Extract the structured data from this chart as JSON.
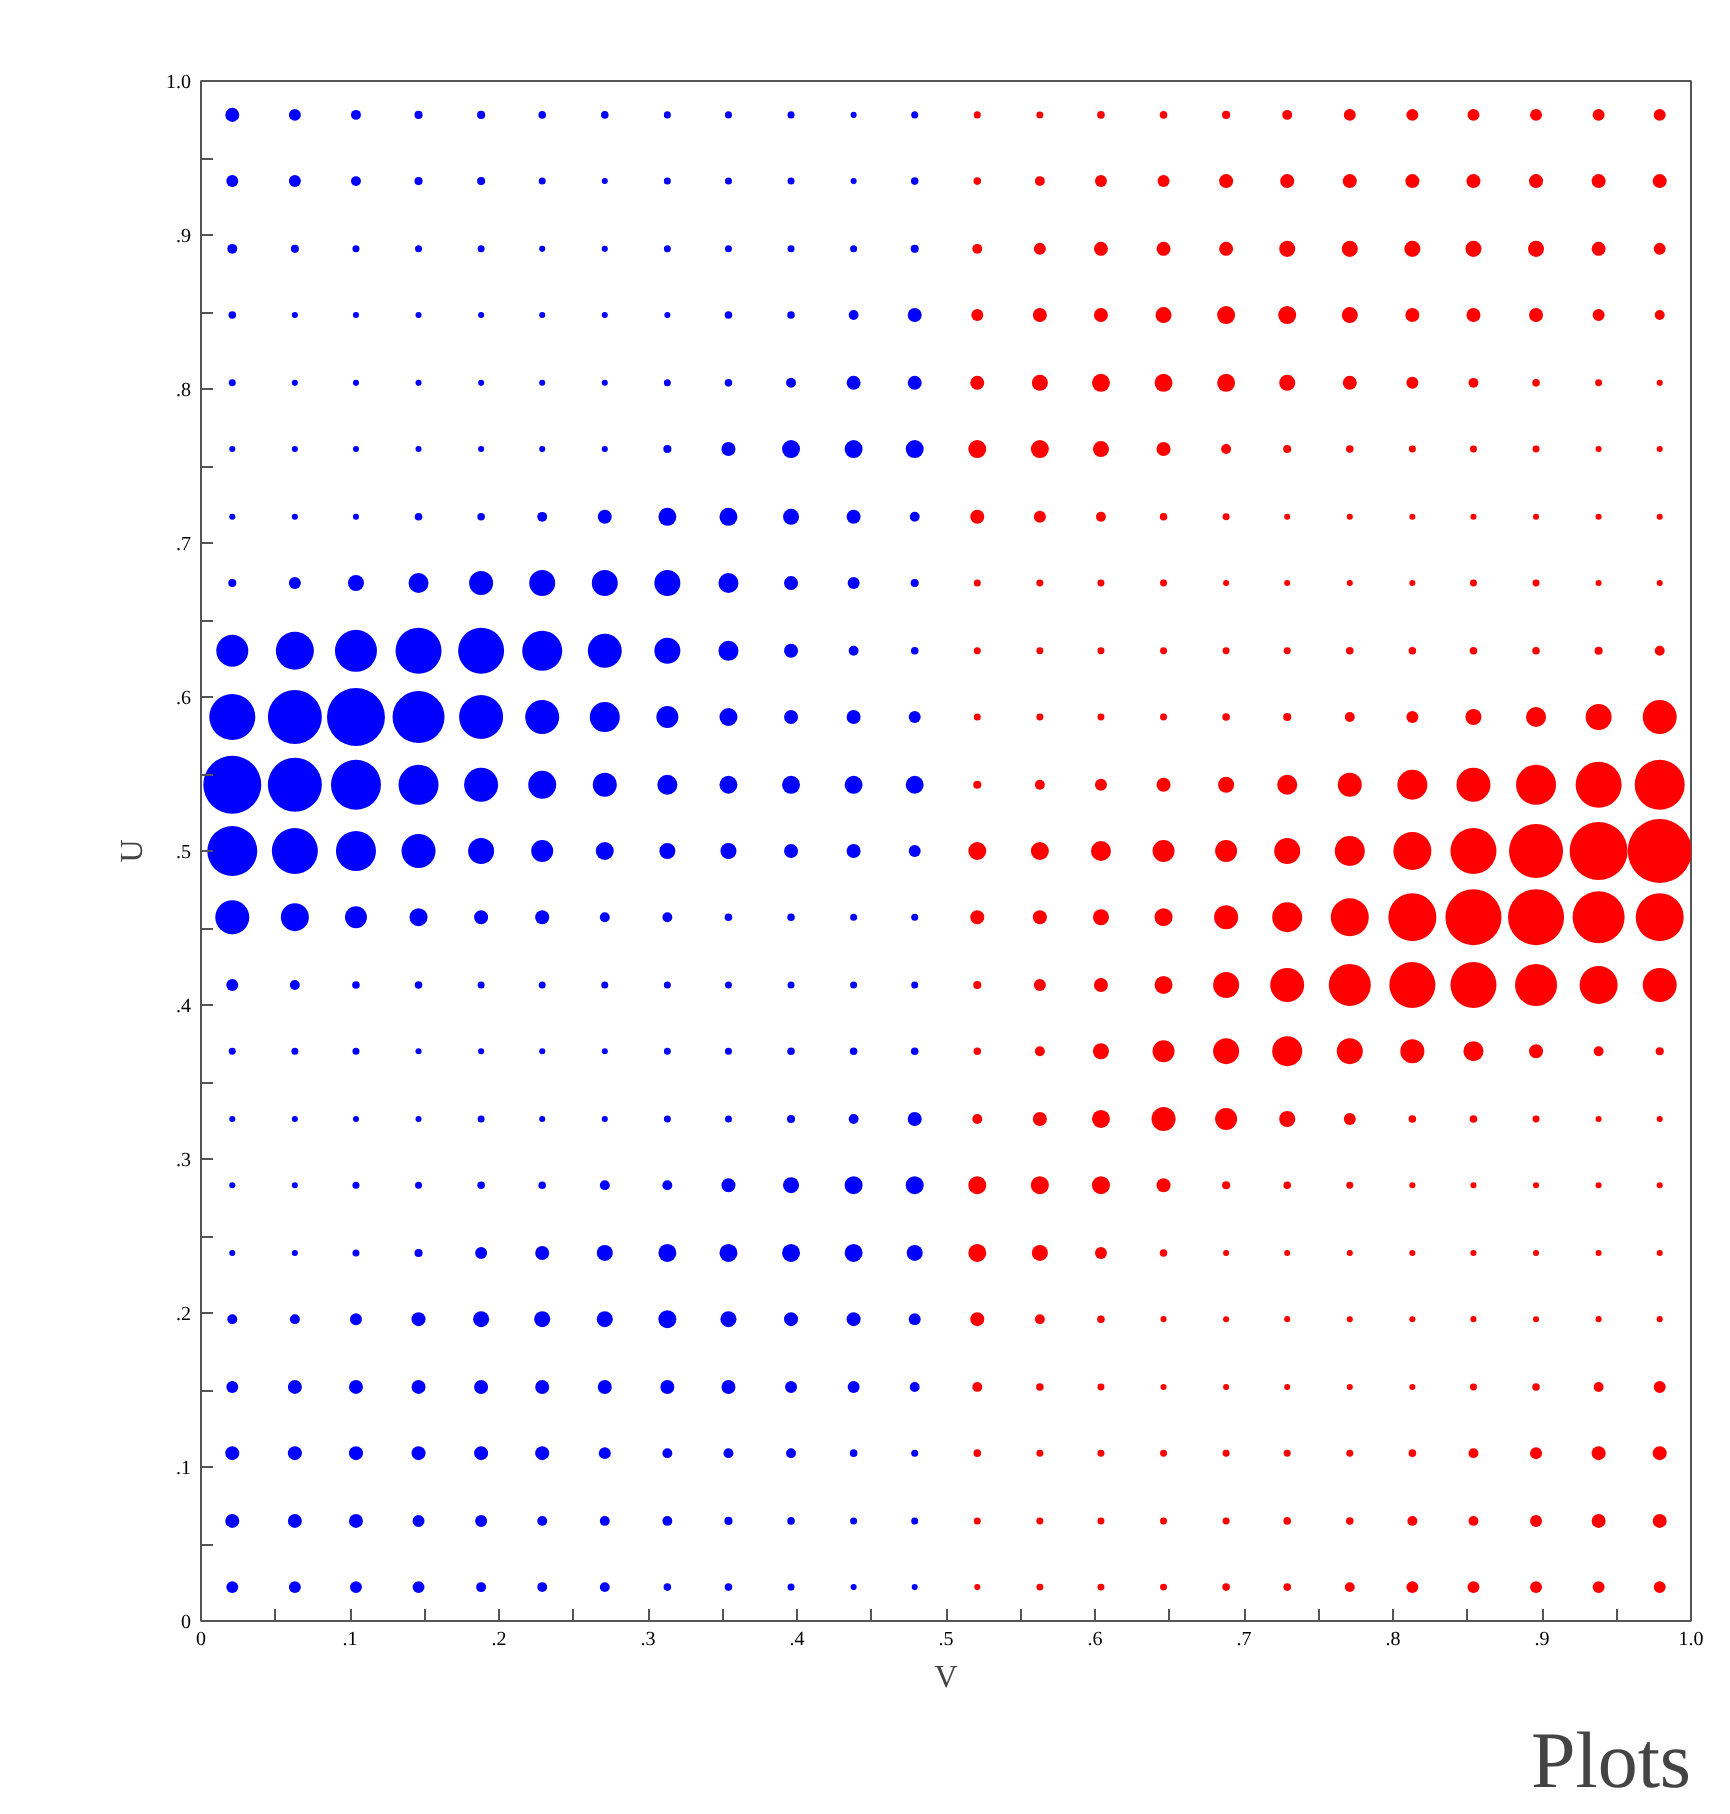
{
  "chart_data": {
    "type": "bubble",
    "xlabel": "V",
    "ylabel": "U",
    "marker": "circle",
    "annotations": [
      "Plots"
    ],
    "xlim": [
      0,
      1
    ],
    "ylim": [
      0,
      1
    ],
    "xticks": [
      {
        "value": 0,
        "label": "0"
      },
      {
        "value": 0.05,
        "label": null
      },
      {
        "value": 0.1,
        "label": ".1"
      },
      {
        "value": 0.15,
        "label": null
      },
      {
        "value": 0.2,
        "label": ".2"
      },
      {
        "value": 0.25,
        "label": null
      },
      {
        "value": 0.3,
        "label": ".3"
      },
      {
        "value": 0.35,
        "label": null
      },
      {
        "value": 0.4,
        "label": ".4"
      },
      {
        "value": 0.45,
        "label": null
      },
      {
        "value": 0.5,
        "label": ".5"
      },
      {
        "value": 0.55,
        "label": null
      },
      {
        "value": 0.6,
        "label": ".6"
      },
      {
        "value": 0.65,
        "label": null
      },
      {
        "value": 0.7,
        "label": ".7"
      },
      {
        "value": 0.75,
        "label": null
      },
      {
        "value": 0.8,
        "label": ".8"
      },
      {
        "value": 0.85,
        "label": null
      },
      {
        "value": 0.9,
        "label": ".9"
      },
      {
        "value": 0.95,
        "label": null
      },
      {
        "value": 1,
        "label": "1.0"
      }
    ],
    "yticks": [
      {
        "value": 0,
        "label": "0"
      },
      {
        "value": 0.05,
        "label": null
      },
      {
        "value": 0.1,
        "label": ".1"
      },
      {
        "value": 0.15,
        "label": null
      },
      {
        "value": 0.2,
        "label": ".2"
      },
      {
        "value": 0.25,
        "label": null
      },
      {
        "value": 0.3,
        "label": ".3"
      },
      {
        "value": 0.35,
        "label": null
      },
      {
        "value": 0.4,
        "label": ".4"
      },
      {
        "value": 0.45,
        "label": null
      },
      {
        "value": 0.5,
        "label": ".5"
      },
      {
        "value": 0.55,
        "label": null
      },
      {
        "value": 0.6,
        "label": ".6"
      },
      {
        "value": 0.65,
        "label": null
      },
      {
        "value": 0.7,
        "label": ".7"
      },
      {
        "value": 0.75,
        "label": null
      },
      {
        "value": 0.8,
        "label": ".8"
      },
      {
        "value": 0.85,
        "label": null
      },
      {
        "value": 0.9,
        "label": ".9"
      },
      {
        "value": 0.95,
        "label": null
      },
      {
        "value": 1,
        "label": "1.0"
      }
    ],
    "series": [
      {
        "color": "#0000ff",
        "x": [
          0.021,
          0.063,
          0.104,
          0.146,
          0.188,
          0.229,
          0.271,
          0.313,
          0.354,
          0.396,
          0.438,
          0.479
        ],
        "values": [
          0.978,
          0.978,
          0.978,
          0.978,
          0.978,
          0.978,
          0.978,
          0.978,
          0.978,
          0.978,
          0.978,
          0.978
        ],
        "sizes": [
          0.048,
          0.035,
          0.024,
          0.016,
          0.016,
          0.014,
          0.014,
          0.012,
          0.012,
          0.012,
          0.009,
          0.012
        ]
      },
      {
        "color": "#0000ff",
        "x": [
          0.021,
          0.063,
          0.104,
          0.146,
          0.188,
          0.229,
          0.271,
          0.313,
          0.354,
          0.396,
          0.438,
          0.479
        ],
        "values": [
          0.935,
          0.935,
          0.935,
          0.935,
          0.935,
          0.935,
          0.935,
          0.935,
          0.935,
          0.935,
          0.935,
          0.935
        ],
        "sizes": [
          0.035,
          0.035,
          0.024,
          0.016,
          0.016,
          0.012,
          0.009,
          0.012,
          0.012,
          0.012,
          0.009,
          0.014
        ]
      },
      {
        "color": "#0000ff",
        "x": [
          0.021,
          0.063,
          0.104,
          0.146,
          0.188,
          0.229,
          0.271,
          0.313,
          0.354,
          0.396,
          0.438,
          0.479
        ],
        "values": [
          0.891,
          0.891,
          0.891,
          0.891,
          0.891,
          0.891,
          0.891,
          0.891,
          0.891,
          0.891,
          0.891,
          0.891
        ],
        "sizes": [
          0.024,
          0.016,
          0.012,
          0.012,
          0.012,
          0.009,
          0.009,
          0.012,
          0.012,
          0.012,
          0.012,
          0.016
        ]
      },
      {
        "color": "#0000ff",
        "x": [
          0.021,
          0.063,
          0.104,
          0.146,
          0.188,
          0.229,
          0.271,
          0.313,
          0.354,
          0.396,
          0.438,
          0.479
        ],
        "values": [
          0.848,
          0.848,
          0.848,
          0.848,
          0.848,
          0.848,
          0.848,
          0.848,
          0.848,
          0.848,
          0.848,
          0.848
        ],
        "sizes": [
          0.014,
          0.009,
          0.009,
          0.009,
          0.009,
          0.009,
          0.009,
          0.009,
          0.014,
          0.014,
          0.024,
          0.048
        ]
      },
      {
        "color": "#0000ff",
        "x": [
          0.021,
          0.063,
          0.104,
          0.146,
          0.188,
          0.229,
          0.271,
          0.313,
          0.354,
          0.396,
          0.438,
          0.479
        ],
        "values": [
          0.804,
          0.804,
          0.804,
          0.804,
          0.804,
          0.804,
          0.804,
          0.804,
          0.804,
          0.804,
          0.804,
          0.804
        ],
        "sizes": [
          0.012,
          0.009,
          0.009,
          0.009,
          0.009,
          0.009,
          0.009,
          0.012,
          0.014,
          0.024,
          0.048,
          0.048
        ]
      },
      {
        "color": "#0000ff",
        "x": [
          0.021,
          0.063,
          0.104,
          0.146,
          0.188,
          0.229,
          0.271,
          0.313,
          0.354,
          0.396,
          0.438,
          0.479
        ],
        "values": [
          0.761,
          0.761,
          0.761,
          0.761,
          0.761,
          0.761,
          0.761,
          0.761,
          0.761,
          0.761,
          0.761,
          0.761
        ],
        "sizes": [
          0.009,
          0.009,
          0.009,
          0.009,
          0.009,
          0.009,
          0.009,
          0.016,
          0.048,
          0.079,
          0.079,
          0.079
        ]
      },
      {
        "color": "#0000ff",
        "x": [
          0.021,
          0.063,
          0.104,
          0.146,
          0.188,
          0.229,
          0.271,
          0.313,
          0.354,
          0.396,
          0.438,
          0.479
        ],
        "values": [
          0.717,
          0.717,
          0.717,
          0.717,
          0.717,
          0.717,
          0.717,
          0.717,
          0.717,
          0.717,
          0.717,
          0.717
        ],
        "sizes": [
          0.009,
          0.009,
          0.009,
          0.014,
          0.014,
          0.024,
          0.048,
          0.079,
          0.079,
          0.063,
          0.048,
          0.024
        ]
      },
      {
        "color": "#0000ff",
        "x": [
          0.021,
          0.063,
          0.104,
          0.146,
          0.188,
          0.229,
          0.271,
          0.313,
          0.354,
          0.396,
          0.438,
          0.479
        ],
        "values": [
          0.674,
          0.674,
          0.674,
          0.674,
          0.674,
          0.674,
          0.674,
          0.674,
          0.674,
          0.674,
          0.674,
          0.674
        ],
        "sizes": [
          0.016,
          0.035,
          0.063,
          0.098,
          0.141,
          0.165,
          0.165,
          0.165,
          0.098,
          0.048,
          0.035,
          0.016
        ]
      },
      {
        "color": "#0000ff",
        "x": [
          0.021,
          0.063,
          0.104,
          0.146,
          0.188,
          0.229,
          0.271,
          0.313,
          0.354,
          0.396,
          0.438,
          0.479
        ],
        "values": [
          0.63,
          0.63,
          0.63,
          0.63,
          0.63,
          0.63,
          0.63,
          0.63,
          0.63,
          0.63,
          0.63,
          0.63
        ],
        "sizes": [
          0.25,
          0.353,
          0.431,
          0.517,
          0.517,
          0.391,
          0.282,
          0.165,
          0.098,
          0.048,
          0.024,
          0.014
        ]
      },
      {
        "color": "#0000ff",
        "x": [
          0.021,
          0.063,
          0.104,
          0.146,
          0.188,
          0.229,
          0.271,
          0.313,
          0.354,
          0.396,
          0.438,
          0.479
        ],
        "values": [
          0.587,
          0.587,
          0.587,
          0.587,
          0.587,
          0.587,
          0.587,
          0.587,
          0.587,
          0.587,
          0.587,
          0.587
        ],
        "sizes": [
          0.517,
          0.712,
          0.821,
          0.66,
          0.473,
          0.282,
          0.22,
          0.118,
          0.079,
          0.048,
          0.048,
          0.035
        ]
      },
      {
        "color": "#0000ff",
        "x": [
          0.021,
          0.063,
          0.104,
          0.146,
          0.188,
          0.229,
          0.271,
          0.313,
          0.354,
          0.396,
          0.438,
          0.479
        ],
        "values": [
          0.543,
          0.543,
          0.543,
          0.543,
          0.543,
          0.543,
          0.543,
          0.543,
          0.543,
          0.543,
          0.543,
          0.543
        ],
        "sizes": [
          0.821,
          0.712,
          0.61,
          0.391,
          0.282,
          0.191,
          0.141,
          0.098,
          0.079,
          0.079,
          0.079,
          0.079
        ]
      },
      {
        "color": "#0000ff",
        "x": [
          0.021,
          0.063,
          0.104,
          0.146,
          0.188,
          0.229,
          0.271,
          0.313,
          0.354,
          0.396,
          0.438,
          0.479
        ],
        "values": [
          0.5,
          0.5,
          0.5,
          0.5,
          0.5,
          0.5,
          0.5,
          0.5,
          0.5,
          0.5,
          0.5,
          0.5
        ],
        "sizes": [
          0.61,
          0.517,
          0.391,
          0.282,
          0.165,
          0.118,
          0.079,
          0.063,
          0.063,
          0.048,
          0.048,
          0.035
        ]
      },
      {
        "color": "#0000ff",
        "x": [
          0.021,
          0.063,
          0.104,
          0.146,
          0.188,
          0.229,
          0.271,
          0.313,
          0.354,
          0.396,
          0.438,
          0.479
        ],
        "values": [
          0.457,
          0.457,
          0.457,
          0.457,
          0.457,
          0.457,
          0.457,
          0.457,
          0.457,
          0.457,
          0.457,
          0.457
        ],
        "sizes": [
          0.282,
          0.191,
          0.118,
          0.079,
          0.048,
          0.048,
          0.024,
          0.024,
          0.014,
          0.014,
          0.012,
          0.012
        ]
      },
      {
        "color": "#0000ff",
        "x": [
          0.021,
          0.063,
          0.104,
          0.146,
          0.188,
          0.229,
          0.271,
          0.313,
          0.354,
          0.396,
          0.438,
          0.479
        ],
        "values": [
          0.413,
          0.413,
          0.413,
          0.413,
          0.413,
          0.413,
          0.413,
          0.413,
          0.413,
          0.413,
          0.413,
          0.413
        ],
        "sizes": [
          0.035,
          0.024,
          0.014,
          0.014,
          0.012,
          0.012,
          0.012,
          0.012,
          0.012,
          0.012,
          0.012,
          0.012
        ]
      },
      {
        "color": "#0000ff",
        "x": [
          0.021,
          0.063,
          0.104,
          0.146,
          0.188,
          0.229,
          0.271,
          0.313,
          0.354,
          0.396,
          0.438,
          0.479
        ],
        "values": [
          0.37,
          0.37,
          0.37,
          0.37,
          0.37,
          0.37,
          0.37,
          0.37,
          0.37,
          0.37,
          0.37,
          0.37
        ],
        "sizes": [
          0.012,
          0.012,
          0.012,
          0.009,
          0.009,
          0.009,
          0.009,
          0.012,
          0.012,
          0.014,
          0.014,
          0.014
        ]
      },
      {
        "color": "#0000ff",
        "x": [
          0.021,
          0.063,
          0.104,
          0.146,
          0.188,
          0.229,
          0.271,
          0.313,
          0.354,
          0.396,
          0.438,
          0.479
        ],
        "values": [
          0.326,
          0.326,
          0.326,
          0.326,
          0.326,
          0.326,
          0.326,
          0.326,
          0.326,
          0.326,
          0.326,
          0.326
        ],
        "sizes": [
          0.009,
          0.009,
          0.009,
          0.009,
          0.012,
          0.009,
          0.009,
          0.012,
          0.012,
          0.016,
          0.024,
          0.048
        ]
      },
      {
        "color": "#0000ff",
        "x": [
          0.021,
          0.063,
          0.104,
          0.146,
          0.188,
          0.229,
          0.271,
          0.313,
          0.354,
          0.396,
          0.438,
          0.479
        ],
        "values": [
          0.283,
          0.283,
          0.283,
          0.283,
          0.283,
          0.283,
          0.283,
          0.283,
          0.283,
          0.283,
          0.283,
          0.283
        ],
        "sizes": [
          0.009,
          0.009,
          0.012,
          0.012,
          0.014,
          0.014,
          0.024,
          0.024,
          0.048,
          0.063,
          0.079,
          0.079
        ]
      },
      {
        "color": "#0000ff",
        "x": [
          0.021,
          0.063,
          0.104,
          0.146,
          0.188,
          0.229,
          0.271,
          0.313,
          0.354,
          0.396,
          0.438,
          0.479
        ],
        "values": [
          0.239,
          0.239,
          0.239,
          0.239,
          0.239,
          0.239,
          0.239,
          0.239,
          0.239,
          0.239,
          0.239,
          0.239
        ],
        "sizes": [
          0.009,
          0.009,
          0.012,
          0.016,
          0.035,
          0.048,
          0.063,
          0.079,
          0.079,
          0.079,
          0.079,
          0.063
        ]
      },
      {
        "color": "#0000ff",
        "x": [
          0.021,
          0.063,
          0.104,
          0.146,
          0.188,
          0.229,
          0.271,
          0.313,
          0.354,
          0.396,
          0.438,
          0.479
        ],
        "values": [
          0.196,
          0.196,
          0.196,
          0.196,
          0.196,
          0.196,
          0.196,
          0.196,
          0.196,
          0.196,
          0.196,
          0.196
        ],
        "sizes": [
          0.024,
          0.024,
          0.035,
          0.048,
          0.063,
          0.063,
          0.063,
          0.079,
          0.063,
          0.048,
          0.048,
          0.035
        ]
      },
      {
        "color": "#0000ff",
        "x": [
          0.021,
          0.063,
          0.104,
          0.146,
          0.188,
          0.229,
          0.271,
          0.313,
          0.354,
          0.396,
          0.438,
          0.479
        ],
        "values": [
          0.152,
          0.152,
          0.152,
          0.152,
          0.152,
          0.152,
          0.152,
          0.152,
          0.152,
          0.152,
          0.152,
          0.152
        ],
        "sizes": [
          0.035,
          0.048,
          0.048,
          0.048,
          0.048,
          0.048,
          0.048,
          0.048,
          0.048,
          0.035,
          0.035,
          0.024
        ]
      },
      {
        "color": "#0000ff",
        "x": [
          0.021,
          0.063,
          0.104,
          0.146,
          0.188,
          0.229,
          0.271,
          0.313,
          0.354,
          0.396,
          0.438,
          0.479
        ],
        "values": [
          0.109,
          0.109,
          0.109,
          0.109,
          0.109,
          0.109,
          0.109,
          0.109,
          0.109,
          0.109,
          0.109,
          0.109
        ],
        "sizes": [
          0.048,
          0.048,
          0.048,
          0.048,
          0.048,
          0.048,
          0.035,
          0.024,
          0.024,
          0.024,
          0.014,
          0.012
        ]
      },
      {
        "color": "#0000ff",
        "x": [
          0.021,
          0.063,
          0.104,
          0.146,
          0.188,
          0.229,
          0.271,
          0.313,
          0.354,
          0.396,
          0.438,
          0.479
        ],
        "values": [
          0.065,
          0.065,
          0.065,
          0.065,
          0.065,
          0.065,
          0.065,
          0.065,
          0.065,
          0.065,
          0.065,
          0.065
        ],
        "sizes": [
          0.048,
          0.048,
          0.048,
          0.035,
          0.035,
          0.024,
          0.024,
          0.024,
          0.016,
          0.014,
          0.012,
          0.012
        ]
      },
      {
        "color": "#0000ff",
        "x": [
          0.021,
          0.063,
          0.104,
          0.146,
          0.188,
          0.229,
          0.271,
          0.313,
          0.354,
          0.396,
          0.438,
          0.479
        ],
        "values": [
          0.022,
          0.022,
          0.022,
          0.022,
          0.022,
          0.022,
          0.022,
          0.022,
          0.022,
          0.022,
          0.022,
          0.022
        ],
        "sizes": [
          0.035,
          0.035,
          0.035,
          0.035,
          0.024,
          0.024,
          0.024,
          0.014,
          0.014,
          0.012,
          0.009,
          0.009
        ]
      },
      {
        "color": "#ff0000",
        "x": [
          0.521,
          0.563,
          0.604,
          0.646,
          0.688,
          0.729,
          0.771,
          0.813,
          0.854,
          0.896,
          0.938,
          0.979
        ],
        "values": [
          0.978,
          0.978,
          0.978,
          0.978,
          0.978,
          0.978,
          0.978,
          0.978,
          0.978,
          0.978,
          0.978,
          0.978
        ],
        "sizes": [
          0.012,
          0.012,
          0.014,
          0.014,
          0.016,
          0.024,
          0.035,
          0.035,
          0.035,
          0.035,
          0.035,
          0.035
        ]
      },
      {
        "color": "#ff0000",
        "x": [
          0.521,
          0.563,
          0.604,
          0.646,
          0.688,
          0.729,
          0.771,
          0.813,
          0.854,
          0.896,
          0.938,
          0.979
        ],
        "values": [
          0.935,
          0.935,
          0.935,
          0.935,
          0.935,
          0.935,
          0.935,
          0.935,
          0.935,
          0.935,
          0.935,
          0.935
        ],
        "sizes": [
          0.014,
          0.024,
          0.035,
          0.035,
          0.048,
          0.048,
          0.048,
          0.048,
          0.048,
          0.048,
          0.048,
          0.048
        ]
      },
      {
        "color": "#ff0000",
        "x": [
          0.521,
          0.563,
          0.604,
          0.646,
          0.688,
          0.729,
          0.771,
          0.813,
          0.854,
          0.896,
          0.938,
          0.979
        ],
        "values": [
          0.891,
          0.891,
          0.891,
          0.891,
          0.891,
          0.891,
          0.891,
          0.891,
          0.891,
          0.891,
          0.891,
          0.891
        ],
        "sizes": [
          0.024,
          0.035,
          0.048,
          0.048,
          0.048,
          0.063,
          0.063,
          0.063,
          0.063,
          0.063,
          0.048,
          0.035
        ]
      },
      {
        "color": "#ff0000",
        "x": [
          0.521,
          0.563,
          0.604,
          0.646,
          0.688,
          0.729,
          0.771,
          0.813,
          0.854,
          0.896,
          0.938,
          0.979
        ],
        "values": [
          0.848,
          0.848,
          0.848,
          0.848,
          0.848,
          0.848,
          0.848,
          0.848,
          0.848,
          0.848,
          0.848,
          0.848
        ],
        "sizes": [
          0.035,
          0.048,
          0.048,
          0.063,
          0.079,
          0.079,
          0.063,
          0.048,
          0.048,
          0.048,
          0.035,
          0.024
        ]
      },
      {
        "color": "#ff0000",
        "x": [
          0.521,
          0.563,
          0.604,
          0.646,
          0.688,
          0.729,
          0.771,
          0.813,
          0.854,
          0.896,
          0.938,
          0.979
        ],
        "values": [
          0.804,
          0.804,
          0.804,
          0.804,
          0.804,
          0.804,
          0.804,
          0.804,
          0.804,
          0.804,
          0.804,
          0.804
        ],
        "sizes": [
          0.048,
          0.063,
          0.079,
          0.079,
          0.079,
          0.063,
          0.048,
          0.035,
          0.024,
          0.014,
          0.012,
          0.009
        ]
      },
      {
        "color": "#ff0000",
        "x": [
          0.521,
          0.563,
          0.604,
          0.646,
          0.688,
          0.729,
          0.771,
          0.813,
          0.854,
          0.896,
          0.938,
          0.979
        ],
        "values": [
          0.761,
          0.761,
          0.761,
          0.761,
          0.761,
          0.761,
          0.761,
          0.761,
          0.761,
          0.761,
          0.761,
          0.761
        ],
        "sizes": [
          0.079,
          0.079,
          0.063,
          0.048,
          0.024,
          0.016,
          0.014,
          0.012,
          0.012,
          0.012,
          0.009,
          0.009
        ]
      },
      {
        "color": "#ff0000",
        "x": [
          0.521,
          0.563,
          0.604,
          0.646,
          0.688,
          0.729,
          0.771,
          0.813,
          0.854,
          0.896,
          0.938,
          0.979
        ],
        "values": [
          0.717,
          0.717,
          0.717,
          0.717,
          0.717,
          0.717,
          0.717,
          0.717,
          0.717,
          0.717,
          0.717,
          0.717
        ],
        "sizes": [
          0.048,
          0.035,
          0.024,
          0.014,
          0.012,
          0.009,
          0.009,
          0.009,
          0.009,
          0.009,
          0.009,
          0.009
        ]
      },
      {
        "color": "#ff0000",
        "x": [
          0.521,
          0.563,
          0.604,
          0.646,
          0.688,
          0.729,
          0.771,
          0.813,
          0.854,
          0.896,
          0.938,
          0.979
        ],
        "values": [
          0.674,
          0.674,
          0.674,
          0.674,
          0.674,
          0.674,
          0.674,
          0.674,
          0.674,
          0.674,
          0.674,
          0.674
        ],
        "sizes": [
          0.012,
          0.012,
          0.012,
          0.012,
          0.009,
          0.009,
          0.009,
          0.009,
          0.012,
          0.012,
          0.009,
          0.009
        ]
      },
      {
        "color": "#ff0000",
        "x": [
          0.521,
          0.563,
          0.604,
          0.646,
          0.688,
          0.729,
          0.771,
          0.813,
          0.854,
          0.896,
          0.938,
          0.979
        ],
        "values": [
          0.63,
          0.63,
          0.63,
          0.63,
          0.63,
          0.63,
          0.63,
          0.63,
          0.63,
          0.63,
          0.63,
          0.63
        ],
        "sizes": [
          0.012,
          0.012,
          0.012,
          0.012,
          0.012,
          0.012,
          0.014,
          0.014,
          0.014,
          0.014,
          0.016,
          0.024
        ]
      },
      {
        "color": "#ff0000",
        "x": [
          0.521,
          0.563,
          0.604,
          0.646,
          0.688,
          0.729,
          0.771,
          0.813,
          0.854,
          0.896,
          0.938,
          0.979
        ],
        "values": [
          0.587,
          0.587,
          0.587,
          0.587,
          0.587,
          0.587,
          0.587,
          0.587,
          0.587,
          0.587,
          0.587,
          0.587
        ],
        "sizes": [
          0.012,
          0.012,
          0.012,
          0.012,
          0.014,
          0.016,
          0.024,
          0.035,
          0.063,
          0.098,
          0.165,
          0.282
        ]
      },
      {
        "color": "#ff0000",
        "x": [
          0.521,
          0.563,
          0.604,
          0.646,
          0.688,
          0.729,
          0.771,
          0.813,
          0.854,
          0.896,
          0.938,
          0.979
        ],
        "values": [
          0.543,
          0.543,
          0.543,
          0.543,
          0.543,
          0.543,
          0.543,
          0.543,
          0.543,
          0.543,
          0.543,
          0.543
        ],
        "sizes": [
          0.016,
          0.024,
          0.035,
          0.048,
          0.063,
          0.098,
          0.141,
          0.22,
          0.282,
          0.391,
          0.517,
          0.61
        ]
      },
      {
        "color": "#ff0000",
        "x": [
          0.521,
          0.563,
          0.604,
          0.646,
          0.688,
          0.729,
          0.771,
          0.813,
          0.854,
          0.896,
          0.938,
          0.979
        ],
        "values": [
          0.5,
          0.5,
          0.5,
          0.5,
          0.5,
          0.5,
          0.5,
          0.5,
          0.5,
          0.5,
          0.5,
          0.5
        ],
        "sizes": [
          0.079,
          0.079,
          0.098,
          0.118,
          0.118,
          0.165,
          0.22,
          0.353,
          0.517,
          0.712,
          0.821,
          1
        ]
      },
      {
        "color": "#ff0000",
        "x": [
          0.521,
          0.563,
          0.604,
          0.646,
          0.688,
          0.729,
          0.771,
          0.813,
          0.854,
          0.896,
          0.938,
          0.979
        ],
        "values": [
          0.457,
          0.457,
          0.457,
          0.457,
          0.457,
          0.457,
          0.457,
          0.457,
          0.457,
          0.457,
          0.457,
          0.457
        ],
        "sizes": [
          0.048,
          0.048,
          0.063,
          0.079,
          0.141,
          0.22,
          0.353,
          0.563,
          0.766,
          0.766,
          0.66,
          0.563
        ]
      },
      {
        "color": "#ff0000",
        "x": [
          0.521,
          0.563,
          0.604,
          0.646,
          0.688,
          0.729,
          0.771,
          0.813,
          0.854,
          0.896,
          0.938,
          0.979
        ],
        "values": [
          0.413,
          0.413,
          0.413,
          0.413,
          0.413,
          0.413,
          0.413,
          0.413,
          0.413,
          0.413,
          0.413,
          0.413
        ],
        "sizes": [
          0.016,
          0.035,
          0.048,
          0.079,
          0.165,
          0.282,
          0.431,
          0.517,
          0.517,
          0.431,
          0.353,
          0.282
        ]
      },
      {
        "color": "#ff0000",
        "x": [
          0.521,
          0.563,
          0.604,
          0.646,
          0.688,
          0.729,
          0.771,
          0.813,
          0.854,
          0.896,
          0.938,
          0.979
        ],
        "values": [
          0.37,
          0.37,
          0.37,
          0.37,
          0.37,
          0.37,
          0.37,
          0.37,
          0.37,
          0.37,
          0.37,
          0.37
        ],
        "sizes": [
          0.014,
          0.024,
          0.063,
          0.118,
          0.165,
          0.22,
          0.165,
          0.141,
          0.098,
          0.048,
          0.024,
          0.016
        ]
      },
      {
        "color": "#ff0000",
        "x": [
          0.521,
          0.563,
          0.604,
          0.646,
          0.688,
          0.729,
          0.771,
          0.813,
          0.854,
          0.896,
          0.938,
          0.979
        ],
        "values": [
          0.326,
          0.326,
          0.326,
          0.326,
          0.326,
          0.326,
          0.326,
          0.326,
          0.326,
          0.326,
          0.326,
          0.326
        ],
        "sizes": [
          0.024,
          0.048,
          0.079,
          0.141,
          0.118,
          0.063,
          0.035,
          0.014,
          0.014,
          0.012,
          0.009,
          0.009
        ]
      },
      {
        "color": "#ff0000",
        "x": [
          0.521,
          0.563,
          0.604,
          0.646,
          0.688,
          0.729,
          0.771,
          0.813,
          0.854,
          0.896,
          0.938,
          0.979
        ],
        "values": [
          0.283,
          0.283,
          0.283,
          0.283,
          0.283,
          0.283,
          0.283,
          0.283,
          0.283,
          0.283,
          0.283,
          0.283
        ],
        "sizes": [
          0.079,
          0.079,
          0.079,
          0.048,
          0.016,
          0.014,
          0.012,
          0.009,
          0.009,
          0.009,
          0.009,
          0.009
        ]
      },
      {
        "color": "#ff0000",
        "x": [
          0.521,
          0.563,
          0.604,
          0.646,
          0.688,
          0.729,
          0.771,
          0.813,
          0.854,
          0.896,
          0.938,
          0.979
        ],
        "values": [
          0.239,
          0.239,
          0.239,
          0.239,
          0.239,
          0.239,
          0.239,
          0.239,
          0.239,
          0.239,
          0.239,
          0.239
        ],
        "sizes": [
          0.079,
          0.063,
          0.035,
          0.014,
          0.009,
          0.009,
          0.009,
          0.009,
          0.009,
          0.009,
          0.009,
          0.009
        ]
      },
      {
        "color": "#ff0000",
        "x": [
          0.521,
          0.563,
          0.604,
          0.646,
          0.688,
          0.729,
          0.771,
          0.813,
          0.854,
          0.896,
          0.938,
          0.979
        ],
        "values": [
          0.196,
          0.196,
          0.196,
          0.196,
          0.196,
          0.196,
          0.196,
          0.196,
          0.196,
          0.196,
          0.196,
          0.196
        ],
        "sizes": [
          0.048,
          0.024,
          0.014,
          0.009,
          0.009,
          0.009,
          0.009,
          0.009,
          0.009,
          0.009,
          0.009,
          0.009
        ]
      },
      {
        "color": "#ff0000",
        "x": [
          0.521,
          0.563,
          0.604,
          0.646,
          0.688,
          0.729,
          0.771,
          0.813,
          0.854,
          0.896,
          0.938,
          0.979
        ],
        "values": [
          0.152,
          0.152,
          0.152,
          0.152,
          0.152,
          0.152,
          0.152,
          0.152,
          0.152,
          0.152,
          0.152,
          0.152
        ],
        "sizes": [
          0.024,
          0.014,
          0.012,
          0.009,
          0.009,
          0.009,
          0.009,
          0.009,
          0.012,
          0.014,
          0.024,
          0.035
        ]
      },
      {
        "color": "#ff0000",
        "x": [
          0.521,
          0.563,
          0.604,
          0.646,
          0.688,
          0.729,
          0.771,
          0.813,
          0.854,
          0.896,
          0.938,
          0.979
        ],
        "values": [
          0.109,
          0.109,
          0.109,
          0.109,
          0.109,
          0.109,
          0.109,
          0.109,
          0.109,
          0.109,
          0.109,
          0.109
        ],
        "sizes": [
          0.014,
          0.012,
          0.012,
          0.012,
          0.012,
          0.012,
          0.012,
          0.014,
          0.024,
          0.035,
          0.048,
          0.048
        ]
      },
      {
        "color": "#ff0000",
        "x": [
          0.521,
          0.563,
          0.604,
          0.646,
          0.688,
          0.729,
          0.771,
          0.813,
          0.854,
          0.896,
          0.938,
          0.979
        ],
        "values": [
          0.065,
          0.065,
          0.065,
          0.065,
          0.065,
          0.065,
          0.065,
          0.065,
          0.065,
          0.065,
          0.065,
          0.065
        ],
        "sizes": [
          0.012,
          0.012,
          0.012,
          0.012,
          0.012,
          0.014,
          0.014,
          0.024,
          0.024,
          0.035,
          0.048,
          0.048
        ]
      },
      {
        "color": "#ff0000",
        "x": [
          0.521,
          0.563,
          0.604,
          0.646,
          0.688,
          0.729,
          0.771,
          0.813,
          0.854,
          0.896,
          0.938,
          0.979
        ],
        "values": [
          0.022,
          0.022,
          0.022,
          0.022,
          0.022,
          0.022,
          0.022,
          0.022,
          0.022,
          0.022,
          0.022,
          0.022
        ],
        "sizes": [
          0.009,
          0.012,
          0.012,
          0.012,
          0.014,
          0.014,
          0.024,
          0.035,
          0.035,
          0.035,
          0.035,
          0.035
        ]
      }
    ]
  }
}
